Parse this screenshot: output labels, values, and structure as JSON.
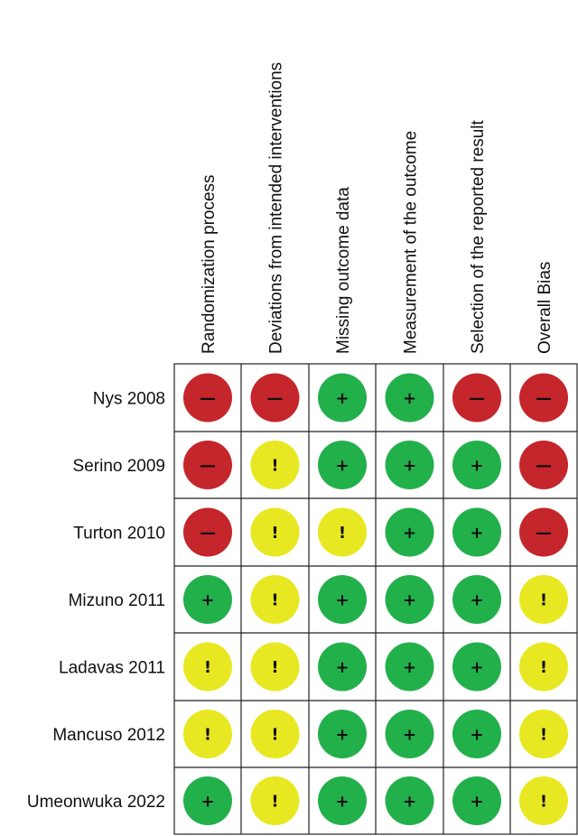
{
  "chart_data": {
    "type": "table",
    "domains": [
      "Randomization process",
      "Deviations from intended interventions",
      "Missing outcome data",
      "Measurement of the outcome",
      "Selection of the reported result",
      "Overall Bias"
    ],
    "studies": [
      "Nys 2008",
      "Serino 2009",
      "Turton 2010",
      "Mizuno 2011",
      "Ladavas 2011",
      "Mancuso 2012",
      "Umeonwuka 2022"
    ],
    "ratings": [
      [
        "high",
        "high",
        "low",
        "low",
        "high",
        "high"
      ],
      [
        "high",
        "some",
        "low",
        "low",
        "low",
        "high"
      ],
      [
        "high",
        "some",
        "some",
        "low",
        "low",
        "high"
      ],
      [
        "low",
        "some",
        "low",
        "low",
        "low",
        "some"
      ],
      [
        "some",
        "some",
        "low",
        "low",
        "low",
        "some"
      ],
      [
        "some",
        "some",
        "low",
        "low",
        "low",
        "some"
      ],
      [
        "low",
        "some",
        "low",
        "low",
        "low",
        "some"
      ]
    ],
    "symbols": {
      "low": "+",
      "some": "!",
      "high": "—"
    },
    "colors": {
      "low": "#22b04b",
      "some": "#e8e822",
      "high": "#c4262b",
      "grid": "#222222"
    }
  }
}
